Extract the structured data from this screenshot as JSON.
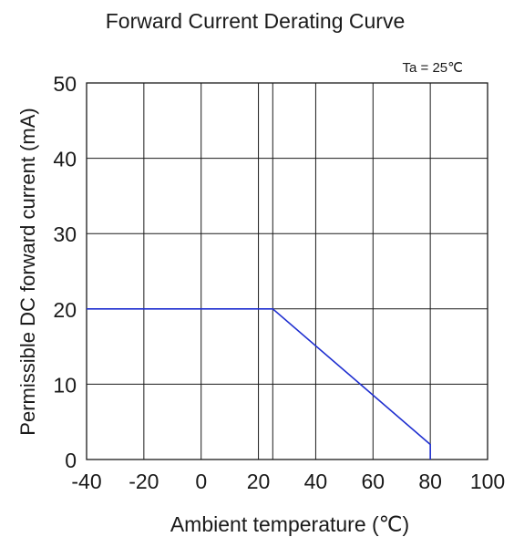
{
  "chart_data": {
    "type": "line",
    "title": "Forward Current Derating Curve",
    "annotation": "Ta = 25℃",
    "xlabel": "Ambient temperature (℃)",
    "ylabel": "Permissible DC forward current (mA)",
    "xlim": [
      -40,
      100
    ],
    "ylim": [
      0,
      50
    ],
    "x_ticks": [
      -40,
      -20,
      0,
      20,
      40,
      60,
      80,
      100
    ],
    "x_tick_labels": [
      "-40",
      "-20",
      "0",
      "20",
      "40",
      "60",
      "80",
      "100"
    ],
    "y_ticks": [
      0,
      10,
      20,
      30,
      40,
      50
    ],
    "y_tick_labels": [
      "0",
      "10",
      "20",
      "30",
      "40",
      "50"
    ],
    "x_grid": [
      -40,
      -20,
      0,
      20,
      25,
      40,
      60,
      80,
      100
    ],
    "grid": true,
    "series": [
      {
        "color": "#1f2fd0",
        "x": [
          -40,
          25,
          80,
          80
        ],
        "y": [
          20,
          20,
          2,
          0
        ]
      }
    ]
  }
}
